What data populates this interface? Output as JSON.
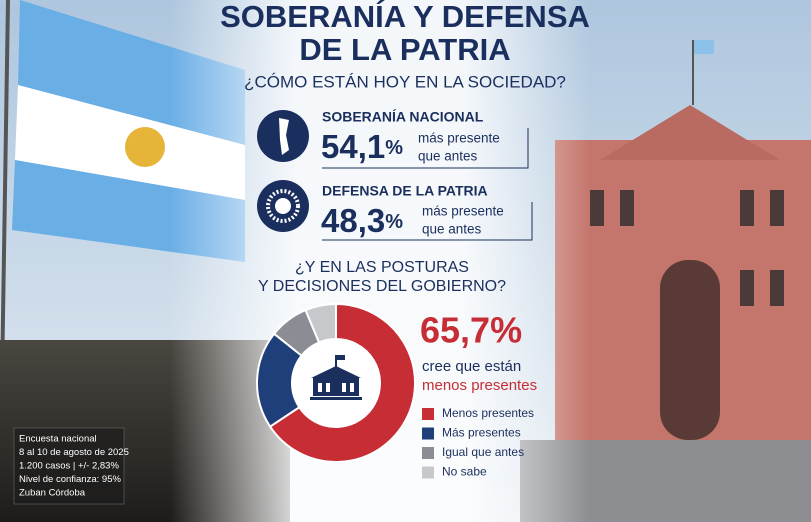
{
  "header": {
    "title": [
      "SOBERANÍA Y DEFENSA",
      "DE LA PATRIA"
    ],
    "subtitle": "¿CÓMO ESTÁN HOY EN LA SOCIEDAD?"
  },
  "stats": [
    {
      "label": "SOBERANÍA NACIONAL",
      "value": "54,1",
      "unit": "%",
      "text": [
        "más presente",
        "que antes"
      ]
    },
    {
      "label": "DEFENSA DE LA PATRIA",
      "value": "48,3",
      "unit": "%",
      "text": [
        "más presente",
        "que antes"
      ]
    }
  ],
  "chart_data": {
    "type": "donut",
    "title": [
      "¿Y EN LAS POSTURAS",
      "Y DECISIONES DEL GOBIERNO?"
    ],
    "categories": [
      "Menos presentes",
      "Más presentes",
      "Igual que antes",
      "No sabe"
    ],
    "values": [
      65.7,
      20,
      8,
      6.3
    ],
    "value_labels": [
      "65,7%",
      null,
      null,
      null
    ],
    "colors": [
      "#c62d35",
      "#1f3f7a",
      "#8a8d93",
      "#c6c8cc"
    ],
    "caption": [
      "cree que están",
      "menos presentes"
    ]
  },
  "notes": [
    "Encuesta nacional",
    "8 al 10 de agosto de 2025",
    "1.200 casos | +/- 2,83%",
    "Nivel de confianza: 95%",
    "Zuban Córdoba"
  ]
}
